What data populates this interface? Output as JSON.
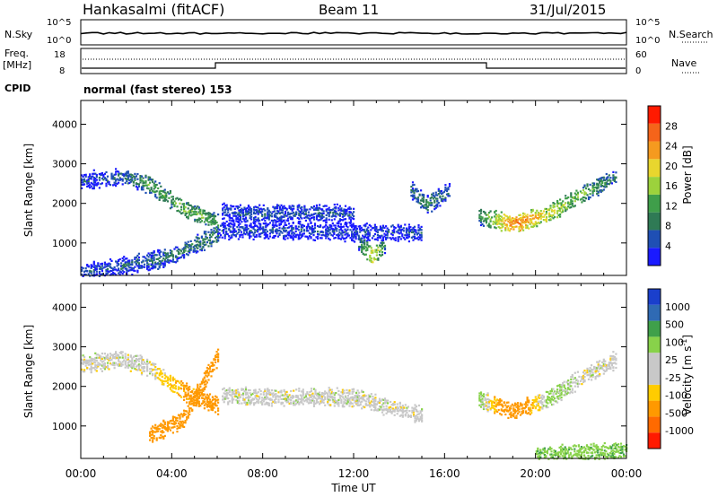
{
  "header": {
    "station": "Hankasalmi (fitACF)",
    "beam": "Beam 11",
    "date": "31/Jul/2015"
  },
  "top_panel": {
    "left_label_1": "N.Sky",
    "left_ticks_1": [
      "10^5",
      "10^0"
    ],
    "right_ticks_1": [
      "10^5",
      "10^0"
    ],
    "right_label_1": "N.Search",
    "left_label_2a": "Freq.",
    "left_label_2b": "[MHz]",
    "left_ticks_2": [
      "18",
      "8"
    ],
    "right_ticks_2": [
      "60",
      "0"
    ],
    "right_label_2": "Nave",
    "cpid_label": "CPID",
    "cpid_text": "normal (fast stereo) 153"
  },
  "colors": {
    "power_scale": [
      "#1a1aff",
      "#1f4fb4",
      "#2f7a55",
      "#3f9e4a",
      "#9cd23c",
      "#e8d62e",
      "#f59a1f",
      "#f5641a",
      "#ff1a00"
    ],
    "velocity_scale": [
      "#ff1a00",
      "#ff6a00",
      "#ff9900",
      "#ffcc00",
      "#c8c8c8",
      "#c8c8c8",
      "#88d24a",
      "#3fa04a",
      "#2f6ab4",
      "#1a3fcc"
    ]
  },
  "chart_data": [
    {
      "type": "heatmap",
      "title": "",
      "xlabel": "",
      "ylabel": "Slant Range [km]",
      "xlim": [
        "00:00",
        "24:00"
      ],
      "ylim": [
        180,
        4600
      ],
      "x_ticks": [
        "00:00",
        "04:00",
        "08:00",
        "12:00",
        "16:00",
        "20:00",
        "00:00"
      ],
      "y_ticks": [
        "1000",
        "2000",
        "3000",
        "4000"
      ],
      "colorbar": {
        "label": "Power [dB]",
        "ticks": [
          "28",
          "24",
          "20",
          "16",
          "12",
          "8",
          "4"
        ],
        "range": [
          0,
          30
        ]
      },
      "bands": [
        {
          "x": [
            0.0,
            1.8,
            3.0,
            4.5,
            6.0
          ],
          "y": [
            2600,
            2700,
            2500,
            1900,
            1550
          ],
          "intensity": [
            5,
            7,
            11,
            13,
            12
          ]
        },
        {
          "x": [
            6.2,
            8.0,
            10.0,
            12.0
          ],
          "y": [
            1800,
            1750,
            1800,
            1750
          ],
          "intensity": [
            5,
            6,
            6,
            5
          ]
        },
        {
          "x": [
            6.0,
            9.0,
            12.0,
            15.0
          ],
          "y": [
            1350,
            1350,
            1300,
            1280
          ],
          "intensity": [
            5,
            5,
            5,
            5
          ]
        },
        {
          "x": [
            12.2,
            12.8,
            13.4
          ],
          "y": [
            1000,
            700,
            950
          ],
          "intensity": [
            7,
            20,
            7
          ]
        },
        {
          "x": [
            14.5,
            15.2,
            16.2
          ],
          "y": [
            2350,
            2000,
            2350
          ],
          "intensity": [
            7,
            10,
            7
          ]
        },
        {
          "x": [
            17.5,
            19.0,
            20.5,
            22.0,
            23.5
          ],
          "y": [
            1700,
            1500,
            1750,
            2250,
            2700
          ],
          "intensity": [
            10,
            24,
            18,
            13,
            8
          ]
        },
        {
          "x": [
            0.0,
            2.0,
            4.0,
            6.0
          ],
          "y": [
            300,
            450,
            700,
            1250
          ],
          "intensity": [
            5,
            7,
            8,
            10
          ]
        }
      ]
    },
    {
      "type": "heatmap",
      "title": "",
      "xlabel": "Time UT",
      "ylabel": "Slant Range [km]",
      "xlim": [
        "00:00",
        "24:00"
      ],
      "ylim": [
        180,
        4600
      ],
      "x_ticks": [
        "00:00",
        "04:00",
        "08:00",
        "12:00",
        "16:00",
        "20:00",
        "00:00"
      ],
      "y_ticks": [
        "1000",
        "2000",
        "3000",
        "4000"
      ],
      "colorbar": {
        "label": "Velocity [m s^-1]",
        "ticks": [
          "1000",
          "500",
          "100",
          "25",
          "-25",
          "-100",
          "-500",
          "-1000"
        ],
        "range": [
          -1000,
          1000
        ]
      },
      "bands": [
        {
          "x": [
            0.0,
            1.8,
            3.0,
            4.5,
            6.0
          ],
          "y": [
            2600,
            2700,
            2500,
            1900,
            1550
          ],
          "velocity": [
            0,
            0,
            0,
            -120,
            -150
          ]
        },
        {
          "x": [
            3.0,
            4.5,
            6.0
          ],
          "y": [
            800,
            1200,
            2800
          ],
          "velocity": [
            -250,
            -300,
            -400
          ]
        },
        {
          "x": [
            6.2,
            9.0,
            12.0,
            15.0
          ],
          "y": [
            1800,
            1750,
            1750,
            1300
          ],
          "velocity": [
            0,
            0,
            0,
            0
          ]
        },
        {
          "x": [
            17.5,
            19.0,
            20.5,
            22.0,
            23.5
          ],
          "y": [
            1700,
            1400,
            1700,
            2250,
            2700
          ],
          "velocity": [
            60,
            -250,
            50,
            0,
            0
          ]
        },
        {
          "x": [
            20.0,
            22.0,
            24.0
          ],
          "y": [
            300,
            350,
            400
          ],
          "velocity": [
            80,
            80,
            80
          ]
        }
      ]
    }
  ]
}
